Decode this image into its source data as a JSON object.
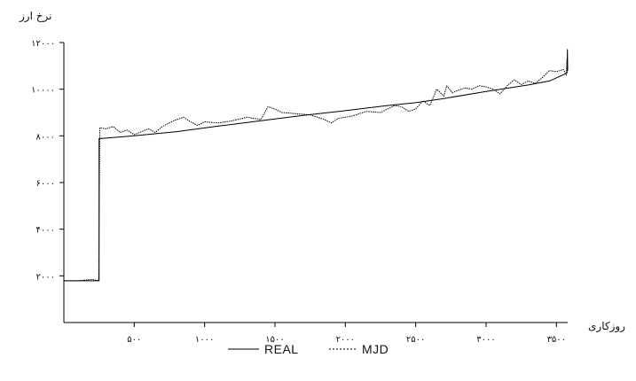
{
  "chart_data": {
    "type": "line",
    "ylabel": "نرخ ارز",
    "xlabel": "روزکاری",
    "xlim": [
      0,
      3580
    ],
    "ylim": [
      0,
      12000
    ],
    "xticks": [
      500,
      1000,
      1500,
      2000,
      2500,
      3000,
      3500
    ],
    "xtick_labels": [
      "۵۰۰",
      "۱۰۰۰",
      "۱۵۰۰",
      "۲۰۰۰",
      "۲۵۰۰",
      "۳۰۰۰",
      "۳۵۰۰"
    ],
    "yticks": [
      2000,
      4000,
      6000,
      8000,
      10000,
      12000
    ],
    "ytick_labels": [
      "۲۰۰۰",
      "۴۰۰۰",
      "۶۰۰۰",
      "۸۰۰۰",
      "۱۰۰۰۰",
      "۱۲۰۰۰"
    ],
    "grid": false,
    "legend_position": "bottom-center",
    "series": [
      {
        "name": "REAL",
        "style": "solid",
        "points": [
          [
            0,
            1790
          ],
          [
            250,
            1790
          ],
          [
            250,
            7880
          ],
          [
            500,
            8000
          ],
          [
            800,
            8180
          ],
          [
            1100,
            8420
          ],
          [
            1400,
            8650
          ],
          [
            1700,
            8880
          ],
          [
            2000,
            9080
          ],
          [
            2300,
            9300
          ],
          [
            2500,
            9420
          ],
          [
            2700,
            9600
          ],
          [
            3000,
            9900
          ],
          [
            3300,
            10180
          ],
          [
            3450,
            10350
          ],
          [
            3560,
            10650
          ],
          [
            3575,
            10700
          ],
          [
            3578,
            11700
          ],
          [
            3580,
            10800
          ]
        ]
      },
      {
        "name": "MJD",
        "style": "dotted",
        "points": [
          [
            0,
            1790
          ],
          [
            100,
            1790
          ],
          [
            200,
            1850
          ],
          [
            240,
            1800
          ],
          [
            248,
            1820
          ],
          [
            255,
            8350
          ],
          [
            300,
            8300
          ],
          [
            350,
            8400
          ],
          [
            400,
            8150
          ],
          [
            450,
            8250
          ],
          [
            500,
            8050
          ],
          [
            600,
            8300
          ],
          [
            650,
            8150
          ],
          [
            700,
            8400
          ],
          [
            780,
            8650
          ],
          [
            850,
            8800
          ],
          [
            900,
            8600
          ],
          [
            950,
            8450
          ],
          [
            1000,
            8600
          ],
          [
            1100,
            8550
          ],
          [
            1200,
            8650
          ],
          [
            1300,
            8800
          ],
          [
            1400,
            8700
          ],
          [
            1450,
            9250
          ],
          [
            1500,
            9150
          ],
          [
            1550,
            9000
          ],
          [
            1650,
            8950
          ],
          [
            1750,
            8900
          ],
          [
            1850,
            8700
          ],
          [
            1900,
            8550
          ],
          [
            1950,
            8750
          ],
          [
            2050,
            8850
          ],
          [
            2150,
            9050
          ],
          [
            2250,
            9000
          ],
          [
            2350,
            9300
          ],
          [
            2400,
            9250
          ],
          [
            2450,
            9050
          ],
          [
            2500,
            9150
          ],
          [
            2550,
            9500
          ],
          [
            2600,
            9300
          ],
          [
            2650,
            10000
          ],
          [
            2700,
            9700
          ],
          [
            2720,
            10150
          ],
          [
            2760,
            9850
          ],
          [
            2800,
            9950
          ],
          [
            2850,
            10050
          ],
          [
            2900,
            10000
          ],
          [
            2950,
            10150
          ],
          [
            3000,
            10100
          ],
          [
            3050,
            10000
          ],
          [
            3100,
            9800
          ],
          [
            3150,
            10150
          ],
          [
            3200,
            10400
          ],
          [
            3250,
            10200
          ],
          [
            3300,
            10350
          ],
          [
            3350,
            10250
          ],
          [
            3400,
            10500
          ],
          [
            3450,
            10800
          ],
          [
            3500,
            10750
          ],
          [
            3550,
            10850
          ],
          [
            3570,
            10600
          ],
          [
            3575,
            11300
          ],
          [
            3580,
            10900
          ]
        ]
      }
    ]
  }
}
